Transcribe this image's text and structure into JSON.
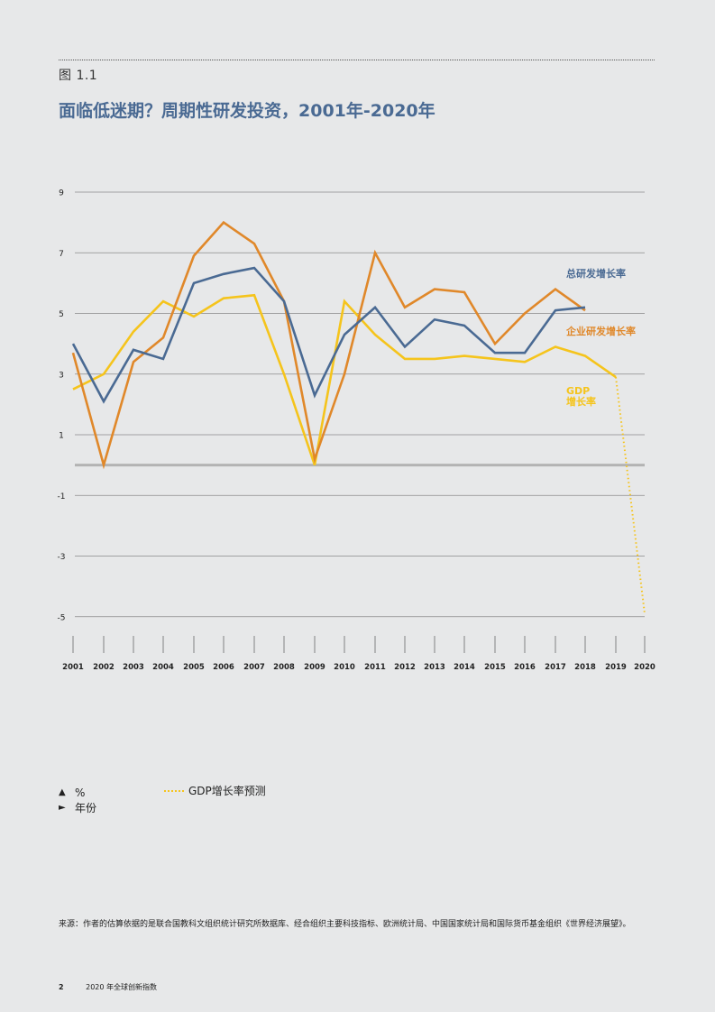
{
  "figure_label": "图 1.1",
  "footer": {
    "page_number": "2",
    "publication": "2020 年全球创新指数"
  },
  "source_note": "来源：作者的估算依据的是联合国教科文组织统计研究所数据库、经合组织主要科技指标、欧洲统计局、中国国家统计局和国际货币基金组织《世界经济展望》。",
  "legend": {
    "y_unit_marker": "▲",
    "y_unit": "%",
    "x_unit_marker": "►",
    "x_unit": "年份",
    "forecast_label": "GDP增长率预测"
  },
  "chart_data": {
    "type": "line",
    "title": "面临低迷期？周期性研发投资，2001年-2020年",
    "x": [
      "2001",
      "2002",
      "2003",
      "2004",
      "2005",
      "2006",
      "2007",
      "2008",
      "2009",
      "2010",
      "2011",
      "2012",
      "2013",
      "2014",
      "2015",
      "2016",
      "2017",
      "2018",
      "2019",
      "2020"
    ],
    "yticks": [
      9,
      7,
      5,
      3,
      1,
      -1,
      -3,
      -5
    ],
    "ylim": [
      -5,
      9
    ],
    "grid": true,
    "zero_line": true,
    "series": [
      {
        "name": "总研发增长率",
        "color": "#4a6a93",
        "values": [
          4.0,
          2.1,
          3.8,
          3.5,
          6.0,
          6.3,
          6.5,
          5.4,
          2.3,
          4.3,
          5.2,
          3.9,
          4.8,
          4.6,
          3.7,
          3.7,
          5.1,
          5.2,
          null,
          null
        ]
      },
      {
        "name": "企业研发增长率",
        "color": "#e0882a",
        "values": [
          3.7,
          0.0,
          3.4,
          4.2,
          6.9,
          8.0,
          7.3,
          5.4,
          0.2,
          3.0,
          7.0,
          5.2,
          5.8,
          5.7,
          4.0,
          5.0,
          5.8,
          5.1,
          null,
          null
        ]
      },
      {
        "name": "GDP增长率",
        "name_lines": [
          "GDP",
          "增长率"
        ],
        "color": "#f5c41c",
        "values": [
          2.5,
          3.0,
          4.4,
          5.4,
          4.9,
          5.5,
          5.6,
          3.0,
          0.0,
          5.4,
          4.3,
          3.5,
          3.5,
          3.6,
          3.5,
          3.4,
          3.9,
          3.6,
          2.9,
          null
        ]
      },
      {
        "name": "GDP增长率预测",
        "color": "#f5c41c",
        "dashed": true,
        "values": [
          null,
          null,
          null,
          null,
          null,
          null,
          null,
          null,
          null,
          null,
          null,
          null,
          null,
          null,
          null,
          null,
          null,
          null,
          2.9,
          -4.9
        ]
      }
    ]
  }
}
